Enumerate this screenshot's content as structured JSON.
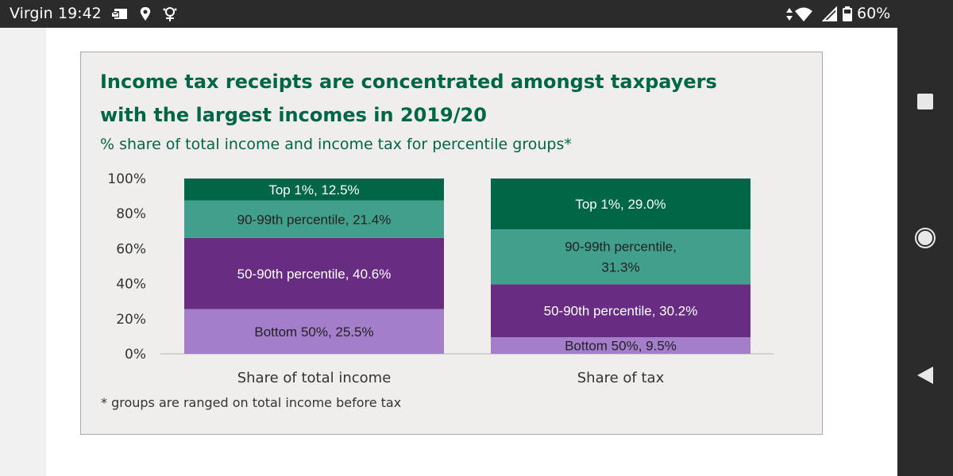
{
  "status_bar": {
    "carrier": "Virgin",
    "time": "19:42",
    "battery": "60%",
    "icons": [
      "mail-icon",
      "location-icon",
      "app-icon",
      "data-arrows-icon",
      "wifi-icon",
      "signal-icon",
      "battery-icon"
    ]
  },
  "nav_bar": {
    "icons": [
      "recent-apps-icon",
      "home-icon",
      "back-icon"
    ]
  },
  "colors": {
    "title": "#006647",
    "top1": "#006647",
    "p90_99": "#41a08b",
    "p50_90": "#682d82",
    "bottom50": "#a47ecb"
  },
  "chart_data": {
    "type": "bar",
    "stacked": true,
    "title_lines": [
      "Income tax receipts are concentrated amongst taxpayers",
      "with the largest incomes in 2019/20"
    ],
    "subtitle": "% share of total income and income tax for percentile groups*",
    "footnote": "* groups are ranged on total income before tax",
    "categories": [
      "Share of total income",
      "Share of tax"
    ],
    "ylim": [
      0,
      100
    ],
    "yticks": [
      "0%",
      "20%",
      "40%",
      "60%",
      "80%",
      "100%"
    ],
    "grid": false,
    "legend": "none",
    "series": [
      {
        "name": "Bottom 50%",
        "values": [
          25.5,
          9.5
        ],
        "color": "#a47ecb",
        "labels": [
          [
            "Bottom 50%, 25.5%"
          ],
          [
            "Bottom 50%, 9.5%"
          ]
        ],
        "label_dark": true
      },
      {
        "name": "50-90th percentile",
        "values": [
          40.6,
          30.2
        ],
        "color": "#682d82",
        "labels": [
          [
            "50-90th percentile, 40.6%"
          ],
          [
            "50-90th percentile, 30.2%"
          ]
        ],
        "label_dark": false
      },
      {
        "name": "90-99th percentile",
        "values": [
          21.4,
          31.3
        ],
        "color": "#41a08b",
        "labels": [
          [
            "90-99th percentile, 21.4%"
          ],
          [
            "90-99th percentile,",
            "31.3%"
          ]
        ],
        "label_dark": true
      },
      {
        "name": "Top 1%",
        "values": [
          12.5,
          29.0
        ],
        "color": "#006647",
        "labels": [
          [
            "Top 1%, 12.5%"
          ],
          [
            "Top 1%, 29.0%"
          ]
        ],
        "label_dark": false
      }
    ]
  }
}
